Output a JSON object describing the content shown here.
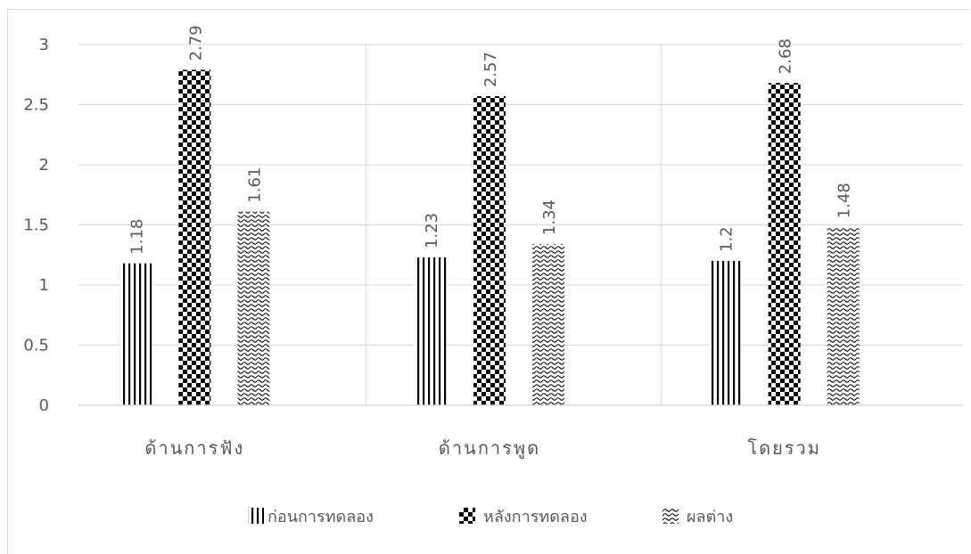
{
  "chart_data": {
    "type": "bar",
    "categories": [
      "ด้านการฟัง",
      "ด้านการพูด",
      "โดยรวม"
    ],
    "series": [
      {
        "name": "ก่อนการทดลอง",
        "values": [
          1.18,
          1.23,
          1.2
        ],
        "labels": [
          "1.18",
          "1.23",
          "1.2"
        ],
        "pattern": "vertical-lines-pattern"
      },
      {
        "name": "หลังการทดลอง",
        "values": [
          2.79,
          2.57,
          2.68
        ],
        "labels": [
          "2.79",
          "2.57",
          "2.68"
        ],
        "pattern": "checkerboard-pattern"
      },
      {
        "name": "ผลต่าง",
        "values": [
          1.61,
          1.34,
          1.48
        ],
        "labels": [
          "1.61",
          "1.34",
          "1.48"
        ],
        "pattern": "wave-pattern"
      }
    ],
    "yticks": [
      "0",
      "0.5",
      "1",
      "1.5",
      "2",
      "2.5",
      "3"
    ],
    "ylim": [
      0,
      3
    ],
    "grid": "vertical-category-separators",
    "legend_position": "bottom",
    "colors": {
      "ink": "#000000",
      "text": "#595959",
      "grid": "#d9d9d9"
    }
  }
}
